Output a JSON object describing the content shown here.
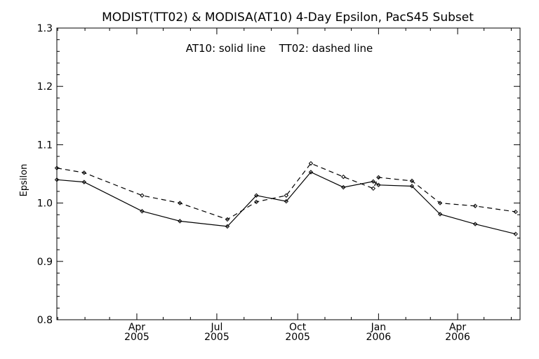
{
  "chart_data": {
    "type": "line",
    "title": "MODIST(TT02) & MODISA(AT10) 4-Day Epsilon, PacS45 Subset",
    "annotation": "AT10: solid line    TT02: dashed line",
    "xlabel": "",
    "ylabel": "Epsilon",
    "xlim": [
      "2004-12-31",
      "2006-06-11"
    ],
    "ylim": [
      0.8,
      1.3
    ],
    "yticks": [
      {
        "value": 0.8,
        "label": "0.8"
      },
      {
        "value": 0.9,
        "label": "0.9"
      },
      {
        "value": 1.0,
        "label": "1.0"
      },
      {
        "value": 1.1,
        "label": "1.1"
      },
      {
        "value": 1.2,
        "label": "1.2"
      },
      {
        "value": 1.3,
        "label": "1.3"
      }
    ],
    "xticks": [
      {
        "date": "2005-04-01",
        "month": "Apr",
        "year": "2005"
      },
      {
        "date": "2005-07-01",
        "month": "Jul",
        "year": "2005"
      },
      {
        "date": "2005-10-01",
        "month": "Oct",
        "year": "2005"
      },
      {
        "date": "2006-01-01",
        "month": "Jan",
        "year": "2006"
      },
      {
        "date": "2006-04-01",
        "month": "Apr",
        "year": "2006"
      }
    ],
    "grid": false,
    "legend": "none",
    "series": [
      {
        "name": "AT10",
        "style": "solid",
        "points": [
          {
            "x": "2004-12-31",
            "y": 1.04
          },
          {
            "x": "2005-01-31",
            "y": 1.036
          },
          {
            "x": "2005-04-07",
            "y": 0.986
          },
          {
            "x": "2005-05-20",
            "y": 0.969
          },
          {
            "x": "2005-07-13",
            "y": 0.96
          },
          {
            "x": "2005-08-15",
            "y": 1.013
          },
          {
            "x": "2005-09-18",
            "y": 1.003
          },
          {
            "x": "2005-10-16",
            "y": 1.053
          },
          {
            "x": "2005-11-22",
            "y": 1.027
          },
          {
            "x": "2005-12-26",
            "y": 1.037
          },
          {
            "x": "2006-01-01",
            "y": 1.031
          },
          {
            "x": "2006-02-08",
            "y": 1.029
          },
          {
            "x": "2006-03-12",
            "y": 0.981
          },
          {
            "x": "2006-04-21",
            "y": 0.964
          },
          {
            "x": "2006-06-06",
            "y": 0.947
          }
        ]
      },
      {
        "name": "TT02",
        "style": "dashed",
        "points": [
          {
            "x": "2004-12-31",
            "y": 1.06
          },
          {
            "x": "2005-01-31",
            "y": 1.052
          },
          {
            "x": "2005-04-07",
            "y": 1.013
          },
          {
            "x": "2005-05-20",
            "y": 1.0
          },
          {
            "x": "2005-07-13",
            "y": 0.972
          },
          {
            "x": "2005-08-15",
            "y": 1.002
          },
          {
            "x": "2005-09-18",
            "y": 1.013
          },
          {
            "x": "2005-10-16",
            "y": 1.068
          },
          {
            "x": "2005-11-22",
            "y": 1.045
          },
          {
            "x": "2005-12-26",
            "y": 1.025
          },
          {
            "x": "2006-01-01",
            "y": 1.044
          },
          {
            "x": "2006-02-08",
            "y": 1.038
          },
          {
            "x": "2006-03-12",
            "y": 1.0
          },
          {
            "x": "2006-04-21",
            "y": 0.995
          },
          {
            "x": "2006-06-06",
            "y": 0.985
          }
        ]
      }
    ]
  }
}
